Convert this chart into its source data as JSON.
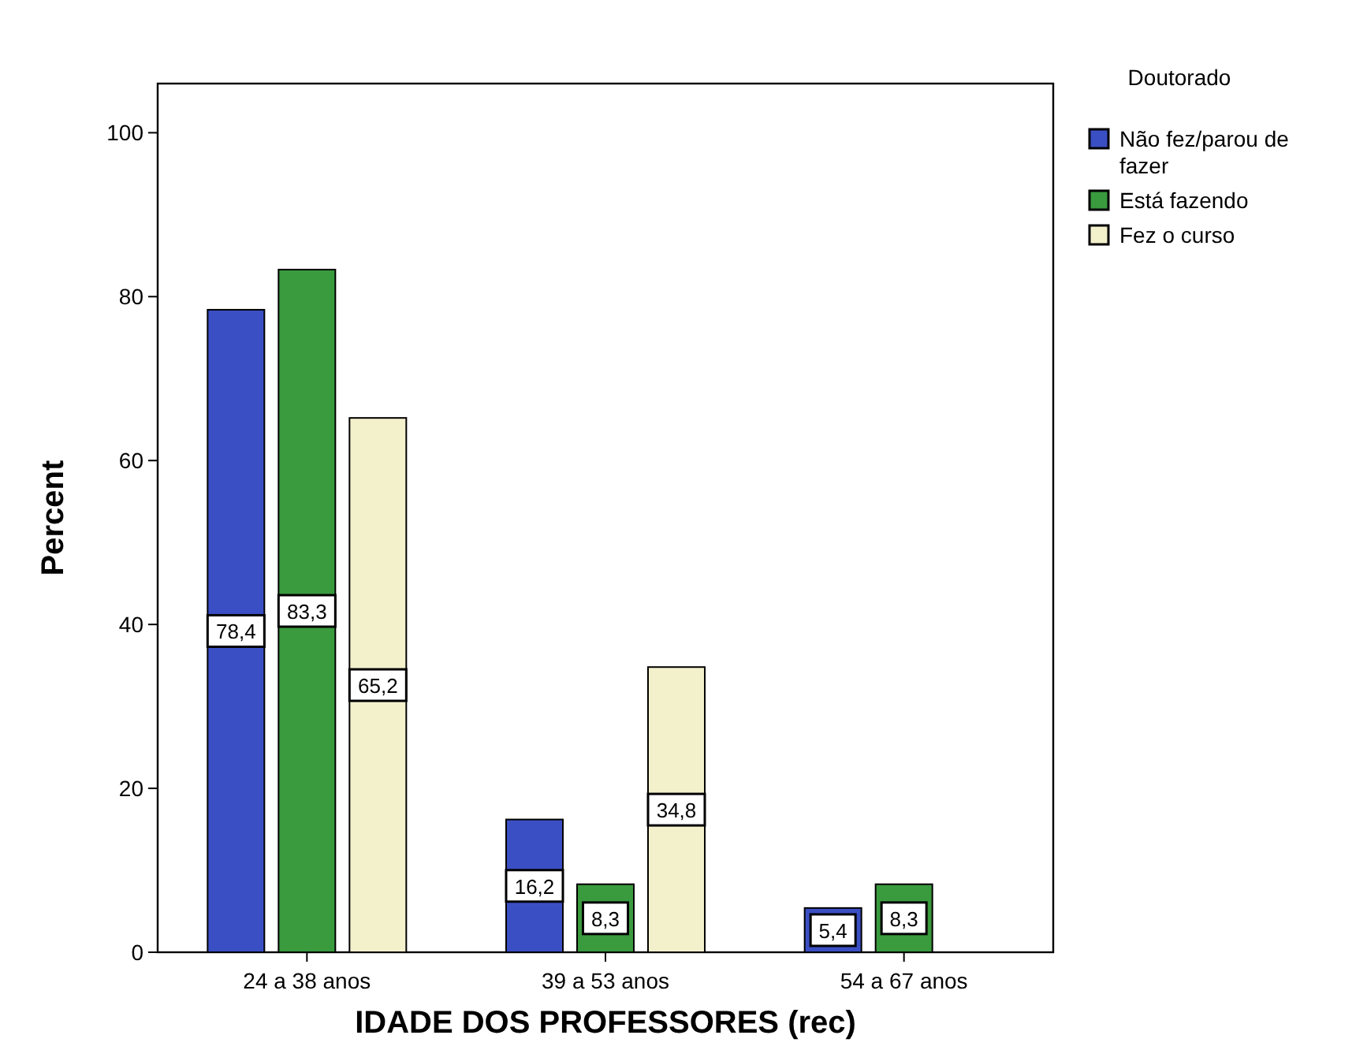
{
  "chart_data": {
    "type": "bar",
    "xlabel": "IDADE DOS PROFESSORES (rec)",
    "ylabel": "Percent",
    "legend_title": "Doutorado",
    "legend": "right",
    "grid": false,
    "categories": [
      "24 a 38 anos",
      "39 a 53 anos",
      "54 a 67 anos"
    ],
    "ylim": [
      0,
      106
    ],
    "yticks": [
      0,
      20,
      40,
      60,
      80,
      100
    ],
    "series": [
      {
        "name": "Não fez/parou de fazer",
        "color": "#3b4fc4",
        "values": [
          78.4,
          16.2,
          5.4
        ],
        "value_labels": [
          "78,4",
          "16,2",
          "5,4"
        ]
      },
      {
        "name": "Está fazendo",
        "color": "#3a9a3e",
        "values": [
          83.3,
          8.3,
          8.3
        ],
        "value_labels": [
          "83,3",
          "8,3",
          "8,3"
        ]
      },
      {
        "name": "Fez o curso",
        "color": "#f3f0cc",
        "values": [
          65.2,
          34.8,
          null
        ],
        "value_labels": [
          "65,2",
          "34,8",
          null
        ]
      }
    ]
  }
}
